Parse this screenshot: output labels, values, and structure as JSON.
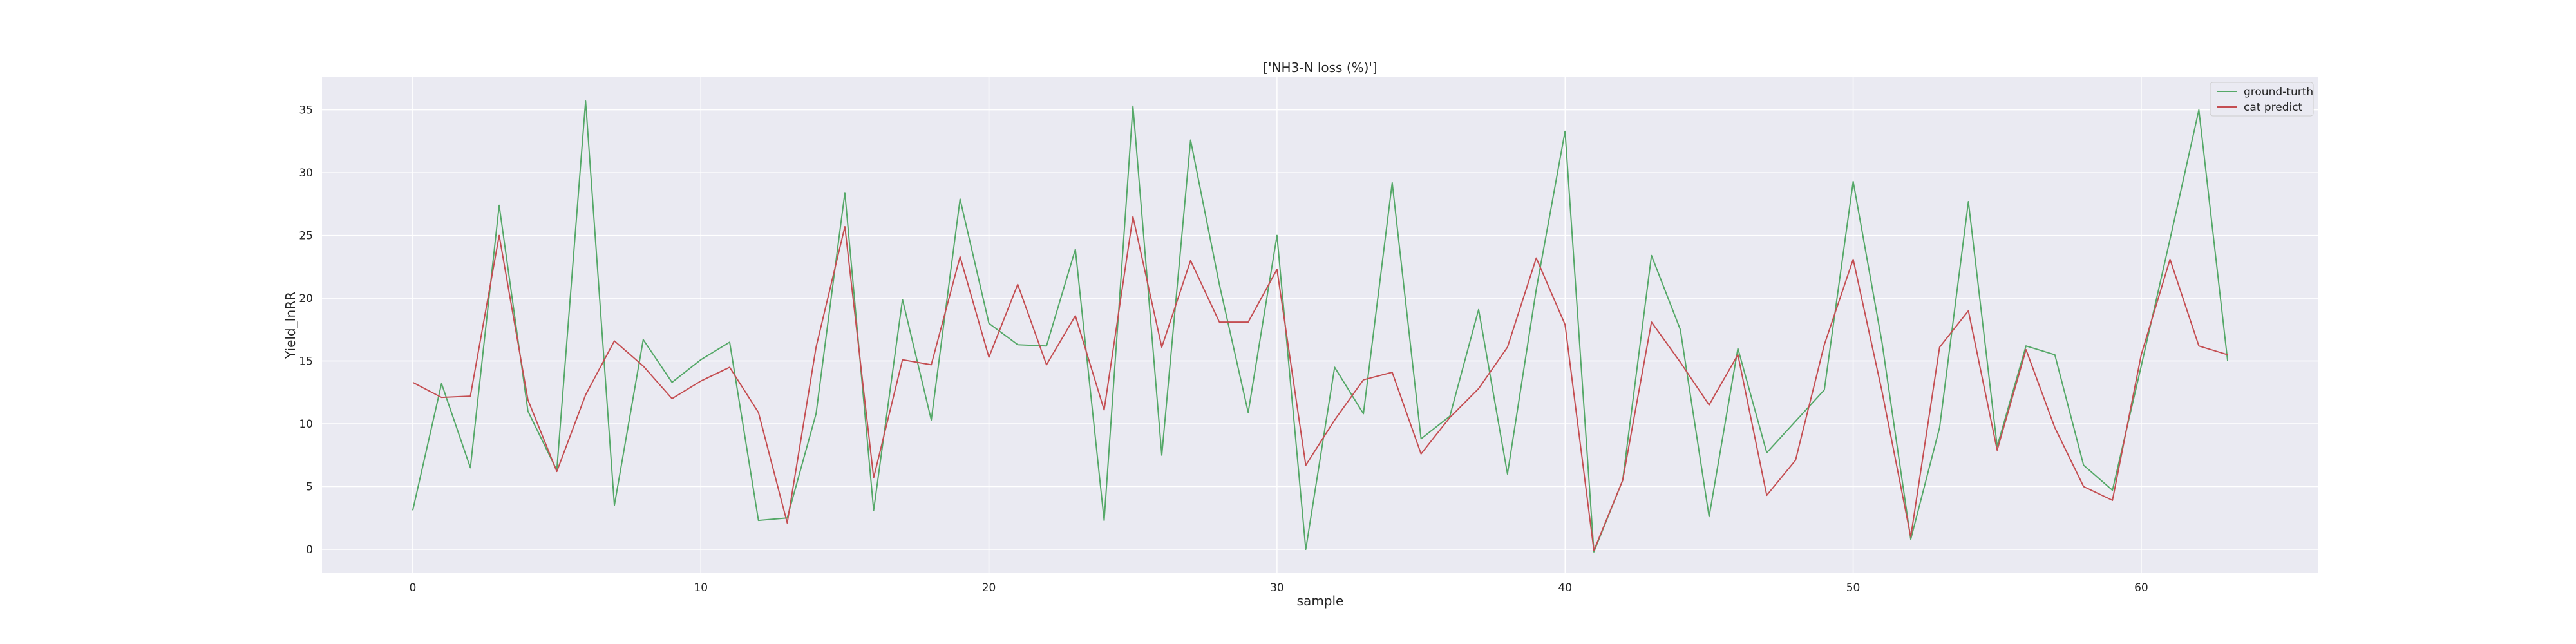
{
  "chart_data": {
    "type": "line",
    "title": "['NH3-N loss (%)']",
    "xlabel": "sample",
    "ylabel": "Yield_InRR",
    "xlim": [
      -3.15,
      66.15
    ],
    "ylim": [
      -1.9,
      37.6
    ],
    "xticks": [
      0,
      10,
      20,
      30,
      40,
      50,
      60
    ],
    "yticks": [
      0,
      5,
      10,
      15,
      20,
      25,
      30,
      35
    ],
    "grid": true,
    "legend_position": "top-right",
    "x": [
      0,
      1,
      2,
      3,
      4,
      5,
      6,
      7,
      8,
      9,
      10,
      11,
      12,
      13,
      14,
      15,
      16,
      17,
      18,
      19,
      20,
      21,
      22,
      23,
      24,
      25,
      26,
      27,
      28,
      29,
      30,
      31,
      32,
      33,
      34,
      35,
      36,
      37,
      38,
      39,
      40,
      41,
      42,
      43,
      44,
      45,
      46,
      47,
      48,
      49,
      50,
      51,
      52,
      53,
      54,
      55,
      56,
      57,
      58,
      59,
      60,
      61,
      62,
      63
    ],
    "series": [
      {
        "name": "ground-turth",
        "color": "#55a868",
        "values": [
          3.1,
          13.2,
          6.5,
          27.4,
          11.0,
          6.3,
          35.7,
          3.5,
          16.7,
          13.3,
          15.1,
          16.5,
          2.3,
          2.5,
          10.8,
          28.4,
          3.1,
          19.9,
          10.3,
          27.9,
          18.0,
          16.3,
          16.2,
          23.9,
          2.3,
          35.3,
          7.5,
          32.6,
          21.1,
          10.9,
          25.0,
          0.0,
          14.5,
          10.8,
          29.2,
          8.8,
          10.6,
          19.1,
          6.0,
          20.7,
          33.3,
          -0.2,
          5.5,
          23.4,
          17.5,
          2.6,
          16.0,
          7.7,
          10.2,
          12.7,
          29.3,
          16.5,
          0.8,
          9.7,
          27.7,
          8.2,
          16.2,
          15.5,
          6.7,
          4.7,
          14.6,
          24.7,
          35.0,
          15.0
        ]
      },
      {
        "name": "cat predict",
        "color": "#c44e52",
        "values": [
          13.3,
          12.1,
          12.2,
          25.0,
          11.9,
          6.2,
          12.3,
          16.6,
          14.6,
          12.0,
          13.4,
          14.5,
          10.9,
          2.1,
          16.1,
          25.7,
          5.7,
          15.1,
          14.7,
          23.3,
          15.3,
          21.1,
          14.7,
          18.6,
          11.1,
          26.5,
          16.1,
          23.0,
          18.1,
          18.1,
          22.3,
          6.7,
          10.3,
          13.5,
          14.1,
          7.6,
          10.5,
          12.8,
          16.1,
          23.2,
          17.9,
          -0.1,
          5.5,
          18.1,
          14.9,
          11.5,
          15.5,
          4.3,
          7.1,
          16.3,
          23.1,
          12.6,
          1.0,
          16.1,
          19.0,
          7.9,
          15.9,
          9.7,
          5.0,
          3.9,
          15.5,
          23.1,
          16.2,
          15.5
        ]
      }
    ]
  }
}
